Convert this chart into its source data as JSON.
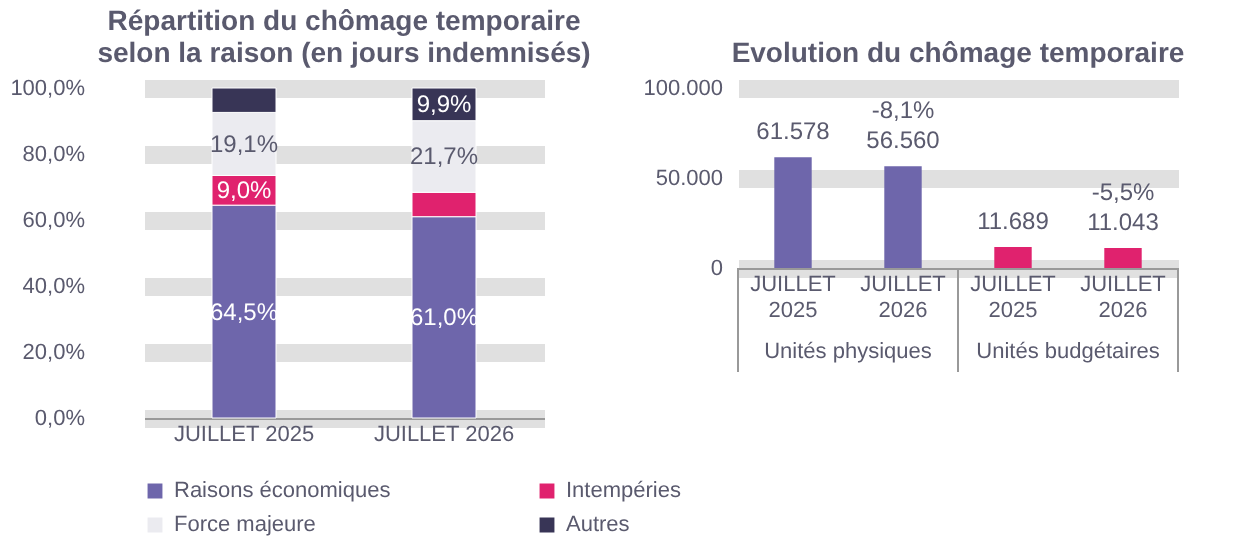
{
  "chart_data": [
    {
      "type": "bar",
      "title": "Répartition du chômage temporaire\nselon la raison (en jours indemnisés)",
      "categories": [
        "JUILLET 2025",
        "JUILLET 2026"
      ],
      "stacked": true,
      "series": [
        {
          "name": "Raisons économiques",
          "color": "#6e66ab",
          "values": [
            64.5,
            61.0
          ],
          "value_labels": [
            "64,5%",
            "61,0%"
          ]
        },
        {
          "name": "Intempéries",
          "color": "#e0226e",
          "values": [
            9.0,
            7.4
          ],
          "value_labels": [
            "9,0%",
            null
          ]
        },
        {
          "name": "Force majeure",
          "color": "#ebebf0",
          "values": [
            19.1,
            21.7
          ],
          "value_labels": [
            "19,1%",
            "21,7%"
          ]
        },
        {
          "name": "Autres",
          "color": "#383556",
          "values": [
            7.4,
            9.9
          ],
          "value_labels": [
            null,
            "9,9%"
          ]
        }
      ],
      "ylim": [
        0,
        100
      ],
      "yticks": [
        {
          "value": 0,
          "label": "0,0%"
        },
        {
          "value": 20,
          "label": "20,0%"
        },
        {
          "value": 40,
          "label": "40,0%"
        },
        {
          "value": 60,
          "label": "60,0%"
        },
        {
          "value": 80,
          "label": "80,0%"
        },
        {
          "value": 100,
          "label": "100,0%"
        }
      ],
      "grid": "y",
      "legend": "bottom"
    },
    {
      "type": "bar",
      "title": "Evolution du chômage temporaire",
      "categories": [
        "JUILLET 2025",
        "JUILLET 2026",
        "JUILLET 2025",
        "JUILLET 2026"
      ],
      "values": [
        61578,
        56560,
        11689,
        11043
      ],
      "colors": [
        "#6e66ab",
        "#6e66ab",
        "#e0226e",
        "#e0226e"
      ],
      "value_labels": [
        "61.578",
        "-8,1%\n56.560",
        "11.689",
        "-5,5%\n11.043"
      ],
      "ylim": [
        0,
        100000
      ],
      "yticks": [
        {
          "value": 0,
          "label": "0"
        },
        {
          "value": 50000,
          "label": "50.000"
        },
        {
          "value": 100000,
          "label": "100.000"
        }
      ],
      "grid": "y",
      "annotations": [
        "Unités physiques",
        "Unités budgétaires"
      ]
    }
  ]
}
